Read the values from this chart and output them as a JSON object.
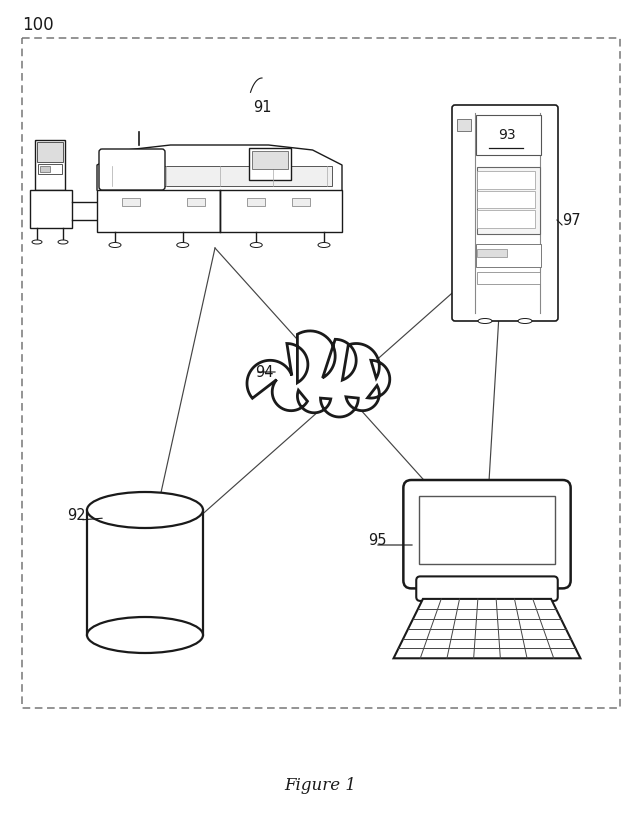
{
  "title": "Figure 1",
  "label_100": "100",
  "label_91": "91",
  "label_92": "92",
  "label_93": "93",
  "label_94": "94",
  "label_95": "95",
  "label_97": "97",
  "bg_color": "#ffffff",
  "lc": "#1a1a1a",
  "gray_light": "#e8e8e8",
  "gray_mid": "#cccccc",
  "dashed_color": "#888888"
}
